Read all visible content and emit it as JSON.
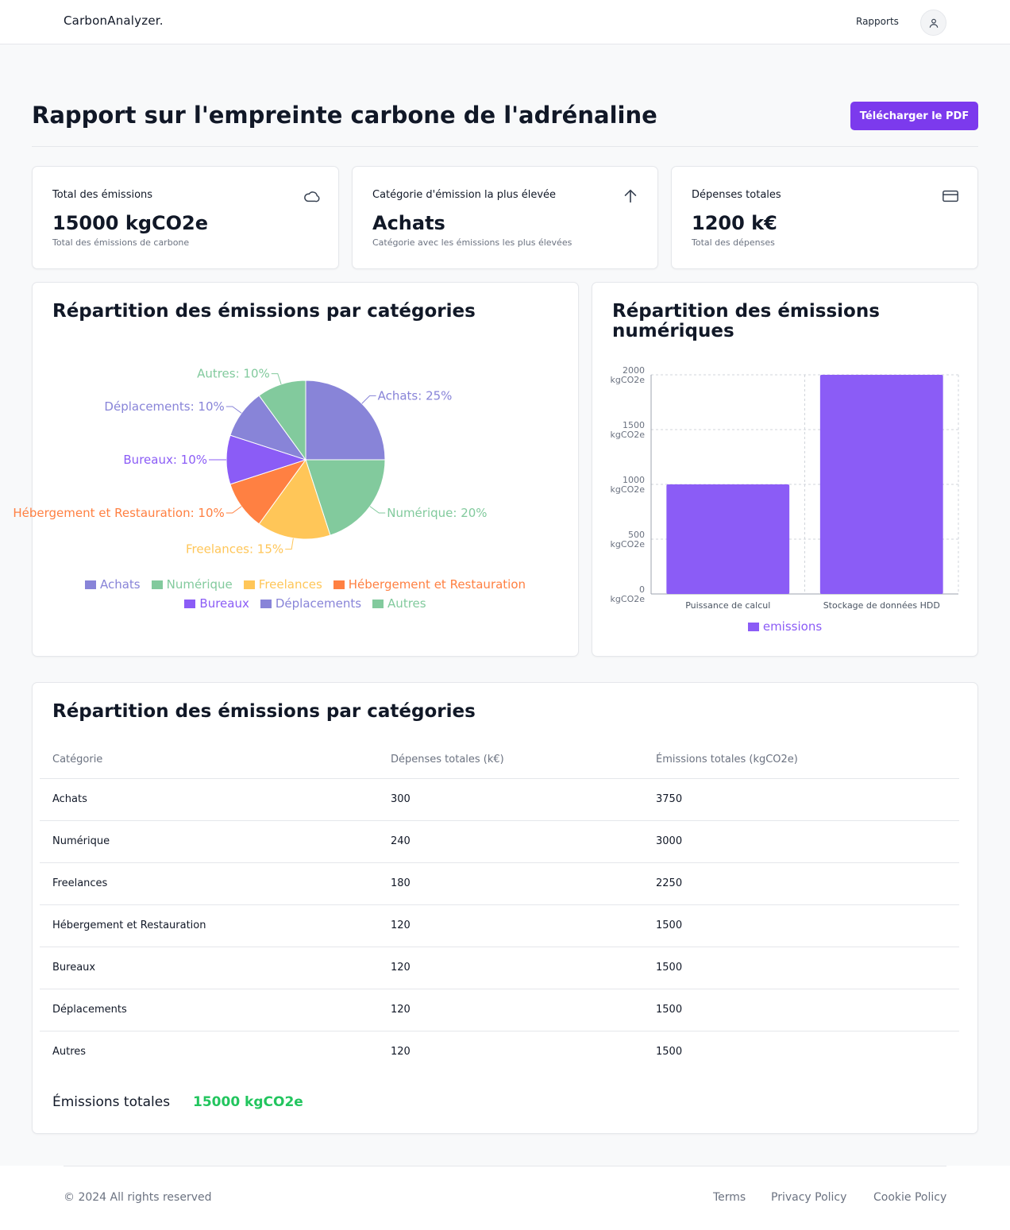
{
  "header": {
    "brand": "CarbonAnalyzer.",
    "nav_reports": "Rapports",
    "user_icon": "user-icon"
  },
  "page": {
    "title": "Rapport sur l'empreinte carbone de l'adrénaline",
    "download_label": "Télécharger le PDF",
    "accent": "#7c3aed"
  },
  "stats": [
    {
      "label": "Total des émissions",
      "value": "15000 kgCO2e",
      "sub": "Total des émissions de carbone",
      "icon": "cloud-icon"
    },
    {
      "label": "Catégorie d'émission la plus élevée",
      "value": "Achats",
      "sub": "Catégorie avec les émissions les plus élevées",
      "icon": "arrow-up-icon"
    },
    {
      "label": "Dépenses totales",
      "value": "1200 k€",
      "sub": "Total des dépenses",
      "icon": "credit-card-icon"
    }
  ],
  "pie_card": {
    "title": "Répartition des émissions par catégories"
  },
  "bar_card": {
    "title_line1": "Répartition des émissions",
    "title_line2": "numériques"
  },
  "chart_data": [
    {
      "type": "pie",
      "categories": [
        "Achats",
        "Numérique",
        "Freelances",
        "Hébergement et Restauration",
        "Bureaux",
        "Déplacements",
        "Autres"
      ],
      "values": [
        25,
        20,
        15,
        10,
        10,
        10,
        10
      ],
      "slice_labels": [
        "Achats: 25%",
        "Numérique: 20%",
        "Freelances: 15%",
        "Hébergement et Restauration: 10%",
        "Bureaux: 10%",
        "Déplacements: 10%",
        "Autres: 10%"
      ],
      "colors": [
        "#8884d8",
        "#82ca9d",
        "#ffc658",
        "#ff8042",
        "#8b5cf6",
        "#8884d8",
        "#82ca9d"
      ],
      "legend": "bottom"
    },
    {
      "type": "bar",
      "categories": [
        "Puissance de calcul",
        "Stockage de données HDD"
      ],
      "series": [
        {
          "name": "emissions",
          "values": [
            1000,
            2000
          ]
        }
      ],
      "ylim": [
        0,
        2000
      ],
      "yticks": [
        0,
        500,
        1000,
        1500,
        2000
      ],
      "ytick_unit": "kgCO2e",
      "grid": true,
      "color": "#8b5cf6",
      "legend": "bottom"
    }
  ],
  "table_card": {
    "title": "Répartition des émissions par catégories",
    "headers": [
      "Catégorie",
      "Dépenses totales (k€)",
      "Émissions totales (kgCO2e)"
    ],
    "rows": [
      [
        "Achats",
        "300",
        "3750"
      ],
      [
        "Numérique",
        "240",
        "3000"
      ],
      [
        "Freelances",
        "180",
        "2250"
      ],
      [
        "Hébergement et Restauration",
        "120",
        "1500"
      ],
      [
        "Bureaux",
        "120",
        "1500"
      ],
      [
        "Déplacements",
        "120",
        "1500"
      ],
      [
        "Autres",
        "120",
        "1500"
      ]
    ],
    "total_label": "Émissions totales",
    "total_value": "15000 kgCO2e",
    "total_color": "#22c55e"
  },
  "footer": {
    "copyright": "© 2024 All rights reserved",
    "links": [
      "Terms",
      "Privacy Policy",
      "Cookie Policy"
    ]
  }
}
